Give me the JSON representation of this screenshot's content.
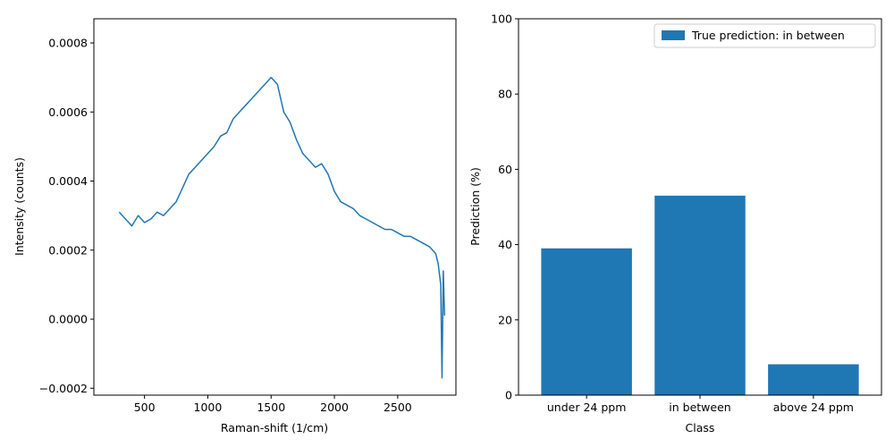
{
  "chart_data": [
    {
      "type": "line",
      "xlabel": "Raman-shift (1/cm)",
      "ylabel": "Intensity (counts)",
      "xlim": [
        100,
        2960
      ],
      "ylim": [
        -0.00022,
        0.00087
      ],
      "xticks": [
        500,
        1000,
        1500,
        2000,
        2500
      ],
      "xtick_labels": [
        "500",
        "1000",
        "1500",
        "2000",
        "2500"
      ],
      "yticks": [
        -0.0002,
        0.0,
        0.0002,
        0.0004,
        0.0006,
        0.0008
      ],
      "ytick_labels": [
        "−0.0002",
        "0.0000",
        "0.0002",
        "0.0004",
        "0.0006",
        "0.0008"
      ],
      "grid": false,
      "color": "#1f77b4",
      "series": [
        {
          "x": [
            300,
            350,
            400,
            450,
            500,
            550,
            600,
            650,
            700,
            750,
            800,
            850,
            900,
            950,
            1000,
            1050,
            1100,
            1150,
            1200,
            1250,
            1300,
            1350,
            1400,
            1450,
            1500,
            1550,
            1600,
            1650,
            1700,
            1750,
            1800,
            1850,
            1900,
            1950,
            2000,
            2050,
            2100,
            2150,
            2200,
            2250,
            2300,
            2350,
            2400,
            2450,
            2500,
            2550,
            2600,
            2650,
            2700,
            2750,
            2800,
            2820,
            2840,
            2850,
            2860,
            2870
          ],
          "y": [
            0.00031,
            0.00029,
            0.00027,
            0.0003,
            0.00028,
            0.00029,
            0.00031,
            0.0003,
            0.00032,
            0.00034,
            0.00038,
            0.00042,
            0.00044,
            0.00046,
            0.00048,
            0.0005,
            0.00053,
            0.00054,
            0.00058,
            0.0006,
            0.00062,
            0.00064,
            0.00066,
            0.00068,
            0.0007,
            0.00068,
            0.0006,
            0.00057,
            0.00052,
            0.00048,
            0.00046,
            0.00044,
            0.00045,
            0.00042,
            0.00037,
            0.00034,
            0.00033,
            0.00032,
            0.0003,
            0.00029,
            0.00028,
            0.00027,
            0.00026,
            0.00026,
            0.00025,
            0.00024,
            0.00024,
            0.00023,
            0.00022,
            0.00021,
            0.00019,
            0.00016,
            0.0001,
            -0.00017,
            0.00014,
            1e-05
          ]
        }
      ]
    },
    {
      "type": "bar",
      "xlabel": "Class",
      "ylabel": "Prediction (%)",
      "ylim": [
        0,
        100
      ],
      "yticks": [
        0,
        20,
        40,
        60,
        80,
        100
      ],
      "ytick_labels": [
        "0",
        "20",
        "40",
        "60",
        "80",
        "100"
      ],
      "categories": [
        "under 24 ppm",
        "in between",
        "above 24 ppm"
      ],
      "grid": false,
      "legend_position": "top-right",
      "color": "#1f77b4",
      "series": [
        {
          "name": "True prediction: in between",
          "values": [
            39,
            53,
            8.2
          ]
        }
      ]
    }
  ]
}
